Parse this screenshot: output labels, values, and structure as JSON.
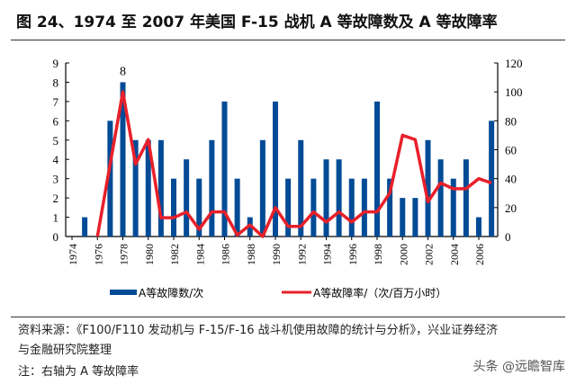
{
  "title": "图 24、1974 至 2007 年美国 F-15 战机 A 等故障数及 A 等故障率",
  "chart_data": {
    "type": "bar+line",
    "categories": [
      1974,
      1975,
      1976,
      1977,
      1978,
      1979,
      1980,
      1981,
      1982,
      1983,
      1984,
      1985,
      1986,
      1987,
      1988,
      1989,
      1990,
      1991,
      1992,
      1993,
      1994,
      1995,
      1996,
      1997,
      1998,
      1999,
      2000,
      2001,
      2002,
      2003,
      2004,
      2005,
      2006,
      2007
    ],
    "x_tick_labels": [
      "1974",
      "1976",
      "1978",
      "1980",
      "1982",
      "1984",
      "1986",
      "1988",
      "1990",
      "1992",
      "1994",
      "1996",
      "1998",
      "2000",
      "2002",
      "2004",
      "2006"
    ],
    "series": [
      {
        "name": "A等故障数/次",
        "type": "bar",
        "axis": "left",
        "color": "#004b96",
        "values": [
          0,
          1,
          0,
          6,
          8,
          5,
          5,
          5,
          3,
          4,
          3,
          5,
          7,
          3,
          1,
          5,
          7,
          3,
          5,
          3,
          4,
          4,
          3,
          3,
          7,
          3,
          2,
          2,
          5,
          4,
          3,
          4,
          1,
          6
        ]
      },
      {
        "name": "A等故障率/（次/百万小时）",
        "type": "line",
        "axis": "right",
        "color": "#e8202a",
        "values": [
          null,
          null,
          0,
          50,
          100,
          50,
          67,
          13,
          13,
          17,
          5,
          17,
          17,
          1,
          8,
          0,
          20,
          7,
          7,
          17,
          10,
          17,
          10,
          17,
          17,
          30,
          70,
          67,
          24,
          37,
          33,
          33,
          40,
          37
        ]
      }
    ],
    "data_labels": [
      {
        "year": 1978,
        "text": "8"
      }
    ],
    "ylim_left": [
      0,
      9
    ],
    "yticks_left": [
      "0",
      "1",
      "2",
      "3",
      "4",
      "5",
      "6",
      "7",
      "8",
      "9"
    ],
    "ylim_right": [
      0,
      120
    ],
    "yticks_right": [
      "0",
      "20",
      "40",
      "60",
      "80",
      "100",
      "120"
    ],
    "legend": "bottom",
    "grid": false
  },
  "notes": {
    "source": "资料来源：《F100/F110 发动机与 F-15/F-16 战斗机使用故障的统计与分析》，兴业证券经济",
    "source2": "与金融研究院整理",
    "note": "注：右轴为 A 等故障率"
  },
  "watermark": "头条 @远瞻智库"
}
